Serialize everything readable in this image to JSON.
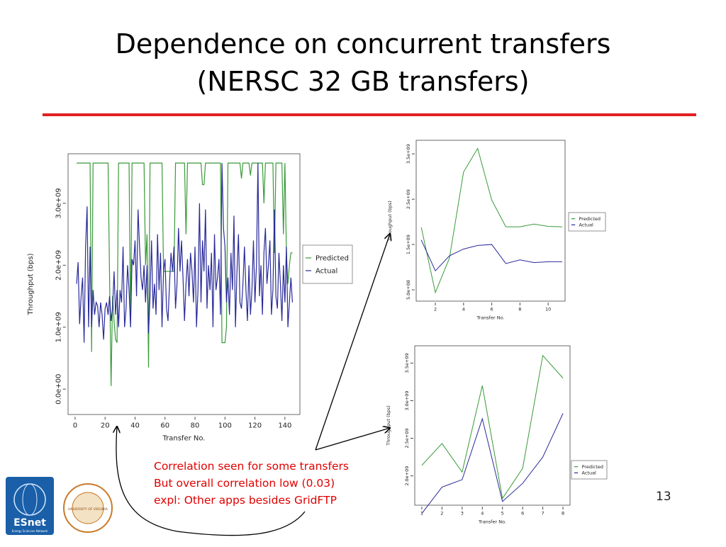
{
  "slide": {
    "title_lines": [
      "Dependence on concurrent transfers",
      "(NERSC 32 GB transfers)"
    ],
    "notes": [
      "Correlation seen for some transfers",
      "But overall correlation low (0.03)",
      "expl: Other apps besides GridFTP"
    ],
    "page_number": "13",
    "logos": {
      "esnet": "ESnet",
      "esnet_sub": "Energy Sciences Network",
      "uva": "UNIVERSITY OF VIRGINIA"
    }
  },
  "chart_data": [
    {
      "type": "line",
      "x_label": "Transfer No.",
      "y_label": "Throughput (bps)",
      "legend": "right",
      "x": [
        1,
        2,
        3,
        4,
        5,
        6,
        7,
        8,
        9,
        10,
        11,
        12,
        13,
        14,
        15,
        16,
        17,
        18,
        19,
        20,
        21,
        22,
        23,
        24,
        25,
        26,
        27,
        28,
        29,
        30,
        31,
        32,
        33,
        34,
        35,
        36,
        37,
        38,
        39,
        40,
        41,
        42,
        43,
        44,
        45,
        46,
        47,
        48,
        49,
        50,
        51,
        52,
        53,
        54,
        55,
        56,
        57,
        58,
        59,
        60,
        61,
        62,
        63,
        64,
        65,
        66,
        67,
        68,
        69,
        70,
        71,
        72,
        73,
        74,
        75,
        76,
        77,
        78,
        79,
        80,
        81,
        82,
        83,
        84,
        85,
        86,
        87,
        88,
        89,
        90,
        91,
        92,
        93,
        94,
        95,
        96,
        97,
        98,
        99,
        100,
        101,
        102,
        103,
        104,
        105,
        106,
        107,
        108,
        109,
        110,
        111,
        112,
        113,
        114,
        115,
        116,
        117,
        118,
        119,
        120,
        121,
        122,
        123,
        124,
        125,
        126,
        127,
        128,
        129,
        130,
        131,
        132,
        133,
        134,
        135,
        136,
        137,
        138,
        139,
        140,
        141,
        142,
        143,
        144,
        145
      ],
      "xlim": [
        -4.7,
        150
      ],
      "xticks": [
        0,
        20,
        40,
        60,
        80,
        100,
        120,
        140
      ],
      "ylim": [
        -410000000.0,
        3800000000.0
      ],
      "yticks": [
        {
          "value": 0,
          "label": "0.0e+00"
        },
        {
          "value": 1000000000.0,
          "label": "1.0e+09"
        },
        {
          "value": 2000000000.0,
          "label": "2.0e+09"
        },
        {
          "value": 3000000000.0,
          "label": "3.0e+09"
        }
      ],
      "series": [
        {
          "name": "Predicted",
          "color": "#3a9a3a",
          "values": [
            3650000000.0,
            3650000000.0,
            3650000000.0,
            3650000000.0,
            3650000000.0,
            3650000000.0,
            3650000000.0,
            3650000000.0,
            3650000000.0,
            3650000000.0,
            600000000.0,
            3650000000.0,
            3650000000.0,
            3650000000.0,
            3650000000.0,
            3650000000.0,
            3650000000.0,
            3650000000.0,
            3650000000.0,
            3650000000.0,
            3650000000.0,
            3650000000.0,
            1800000000.0,
            50000000.0,
            1500000000.0,
            1100000000.0,
            800000000.0,
            750000000.0,
            3650000000.0,
            3650000000.0,
            3650000000.0,
            3650000000.0,
            3650000000.0,
            3650000000.0,
            3650000000.0,
            3650000000.0,
            1000000000.0,
            3650000000.0,
            3650000000.0,
            3650000000.0,
            3650000000.0,
            3650000000.0,
            3650000000.0,
            3650000000.0,
            3650000000.0,
            3650000000.0,
            2000000000.0,
            2500000000.0,
            350000000.0,
            3650000000.0,
            3650000000.0,
            3650000000.0,
            3650000000.0,
            3650000000.0,
            3650000000.0,
            3650000000.0,
            3650000000.0,
            3650000000.0,
            1900000000.0,
            1900000000.0,
            1900000000.0,
            1900000000.0,
            1900000000.0,
            1900000000.0,
            1900000000.0,
            1900000000.0,
            3650000000.0,
            3650000000.0,
            3650000000.0,
            3650000000.0,
            3650000000.0,
            3650000000.0,
            3650000000.0,
            2500000000.0,
            3650000000.0,
            3650000000.0,
            3650000000.0,
            3650000000.0,
            3650000000.0,
            3650000000.0,
            3650000000.0,
            3650000000.0,
            3650000000.0,
            3650000000.0,
            3300000000.0,
            3300000000.0,
            3650000000.0,
            3650000000.0,
            3650000000.0,
            3650000000.0,
            3650000000.0,
            3650000000.0,
            3650000000.0,
            3650000000.0,
            3650000000.0,
            3650000000.0,
            3650000000.0,
            750000000.0,
            750000000.0,
            750000000.0,
            1000000000.0,
            3650000000.0,
            3650000000.0,
            3650000000.0,
            3650000000.0,
            3650000000.0,
            3650000000.0,
            3650000000.0,
            3650000000.0,
            3650000000.0,
            3400000000.0,
            3650000000.0,
            3650000000.0,
            3650000000.0,
            3650000000.0,
            3650000000.0,
            3450000000.0,
            3650000000.0,
            3650000000.0,
            3650000000.0,
            3650000000.0,
            3650000000.0,
            3650000000.0,
            3650000000.0,
            3650000000.0,
            3000000000.0,
            3650000000.0,
            3650000000.0,
            3650000000.0,
            3650000000.0,
            3650000000.0,
            3650000000.0,
            2200000000.0,
            3650000000.0,
            3650000000.0,
            3650000000.0,
            3650000000.0,
            3650000000.0,
            2500000000.0,
            3650000000.0,
            2200000000.0,
            1700000000.0,
            2000000000.0,
            2200000000.0,
            2200000000.0
          ]
        },
        {
          "name": "Actual",
          "color": "#2a2a9a",
          "values": [
            1700000000.0,
            2050000000.0,
            1050000000.0,
            1500000000.0,
            1800000000.0,
            750000000.0,
            2300000000.0,
            2950000000.0,
            1000000000.0,
            2300000000.0,
            1000000000.0,
            1600000000.0,
            1200000000.0,
            1400000000.0,
            1350000000.0,
            1000000000.0,
            1400000000.0,
            1200000000.0,
            800000000.0,
            1300000000.0,
            1400000000.0,
            1200000000.0,
            1500000000.0,
            1100000000.0,
            1300000000.0,
            1900000000.0,
            1200000000.0,
            1600000000.0,
            1000000000.0,
            1600000000.0,
            1400000000.0,
            2300000000.0,
            1000000000.0,
            1300000000.0,
            2000000000.0,
            1600000000.0,
            1000000000.0,
            2100000000.0,
            2000000000.0,
            2400000000.0,
            1500000000.0,
            2900000000.0,
            2300000000.0,
            1800000000.0,
            1600000000.0,
            2000000000.0,
            1400000000.0,
            2000000000.0,
            900000000.0,
            1500000000.0,
            2400000000.0,
            1300000000.0,
            1700000000.0,
            1200000000.0,
            2500000000.0,
            1600000000.0,
            2200000000.0,
            1000000000.0,
            1900000000.0,
            2100000000.0,
            1300000000.0,
            1100000000.0,
            1700000000.0,
            2200000000.0,
            1900000000.0,
            2300000000.0,
            1300000000.0,
            1700000000.0,
            2600000000.0,
            1900000000.0,
            2400000000.0,
            1800000000.0,
            1100000000.0,
            1700000000.0,
            2100000000.0,
            1500000000.0,
            2200000000.0,
            1900000000.0,
            1400000000.0,
            2300000000.0,
            1000000000.0,
            1600000000.0,
            3000000000.0,
            1400000000.0,
            2400000000.0,
            1900000000.0,
            2900000000.0,
            1300000000.0,
            2000000000.0,
            1600000000.0,
            2200000000.0,
            1000000000.0,
            2500000000.0,
            1600000000.0,
            1800000000.0,
            2100000000.0,
            1200000000.0,
            3650000000.0,
            2600000000.0,
            2300000000.0,
            1400000000.0,
            1800000000.0,
            1200000000.0,
            2200000000.0,
            1600000000.0,
            2800000000.0,
            1000000000.0,
            1900000000.0,
            2500000000.0,
            1400000000.0,
            1300000000.0,
            1700000000.0,
            2300000000.0,
            1600000000.0,
            1100000000.0,
            2000000000.0,
            1200000000.0,
            1600000000.0,
            2400000000.0,
            1400000000.0,
            2000000000.0,
            3650000000.0,
            1500000000.0,
            2000000000.0,
            1200000000.0,
            2200000000.0,
            2600000000.0,
            1700000000.0,
            2000000000.0,
            2400000000.0,
            1200000000.0,
            1600000000.0,
            2900000000.0,
            1500000000.0,
            1300000000.0,
            2200000000.0,
            1700000000.0,
            1100000000.0,
            2000000000.0,
            1400000000.0,
            2300000000.0,
            1000000000.0,
            1400000000.0,
            1800000000.0,
            1400000000.0
          ]
        }
      ]
    },
    {
      "type": "line",
      "x_label": "Transfer No.",
      "y_label": "Throughput (bps)",
      "legend": "right",
      "x": [
        1,
        2,
        3,
        4,
        5,
        6,
        7,
        8,
        9,
        10,
        11
      ],
      "xlim": [
        0.64,
        11.2
      ],
      "xticks": [
        2,
        4,
        6,
        8,
        10
      ],
      "ylim": [
        250000000.0,
        3800000000.0
      ],
      "yticks": [
        {
          "value": 500000000.0,
          "label": "5.0e+08"
        },
        {
          "value": 1500000000.0,
          "label": "1.5e+09"
        },
        {
          "value": 2500000000.0,
          "label": "2.5e+09"
        },
        {
          "value": 3500000000.0,
          "label": "3.5e+09"
        }
      ],
      "series": [
        {
          "name": "Predicted",
          "color": "#3a9a3a",
          "values": [
            1880000000.0,
            440000000.0,
            1200000000.0,
            3100000000.0,
            3620000000.0,
            2480000000.0,
            1890000000.0,
            1890000000.0,
            1950000000.0,
            1900000000.0,
            1890000000.0
          ]
        },
        {
          "name": "Actual",
          "color": "#2a2a9a",
          "values": [
            1600000000.0,
            920000000.0,
            1250000000.0,
            1400000000.0,
            1480000000.0,
            1500000000.0,
            1080000000.0,
            1160000000.0,
            1100000000.0,
            1120000000.0,
            1120000000.0
          ]
        }
      ]
    },
    {
      "type": "line",
      "x_label": "Transfer No.",
      "y_label": "Throughput (bps)",
      "legend": "right",
      "x": [
        1,
        2,
        3,
        4,
        5,
        6,
        7,
        8
      ],
      "xlim": [
        0.65,
        8.35
      ],
      "xticks": [
        1,
        2,
        3,
        4,
        5,
        6,
        7,
        8
      ],
      "ylim": [
        1610000000.0,
        3730000000.0
      ],
      "yticks": [
        {
          "value": 2000000000.0,
          "label": "2.0e+09"
        },
        {
          "value": 2500000000.0,
          "label": "2.5e+09"
        },
        {
          "value": 3000000000.0,
          "label": "3.0e+09"
        },
        {
          "value": 3500000000.0,
          "label": "3.5e+09"
        }
      ],
      "series": [
        {
          "name": "Predicted",
          "color": "#3a9a3a",
          "values": [
            2140000000.0,
            2430000000.0,
            2050000000.0,
            3200000000.0,
            1700000000.0,
            2100000000.0,
            3600000000.0,
            3300000000.0
          ]
        },
        {
          "name": "Actual",
          "color": "#2a2a9a",
          "values": [
            1500000000.0,
            1850000000.0,
            1950000000.0,
            2760000000.0,
            1660000000.0,
            1900000000.0,
            2250000000.0,
            2830000000.0
          ]
        }
      ]
    }
  ]
}
